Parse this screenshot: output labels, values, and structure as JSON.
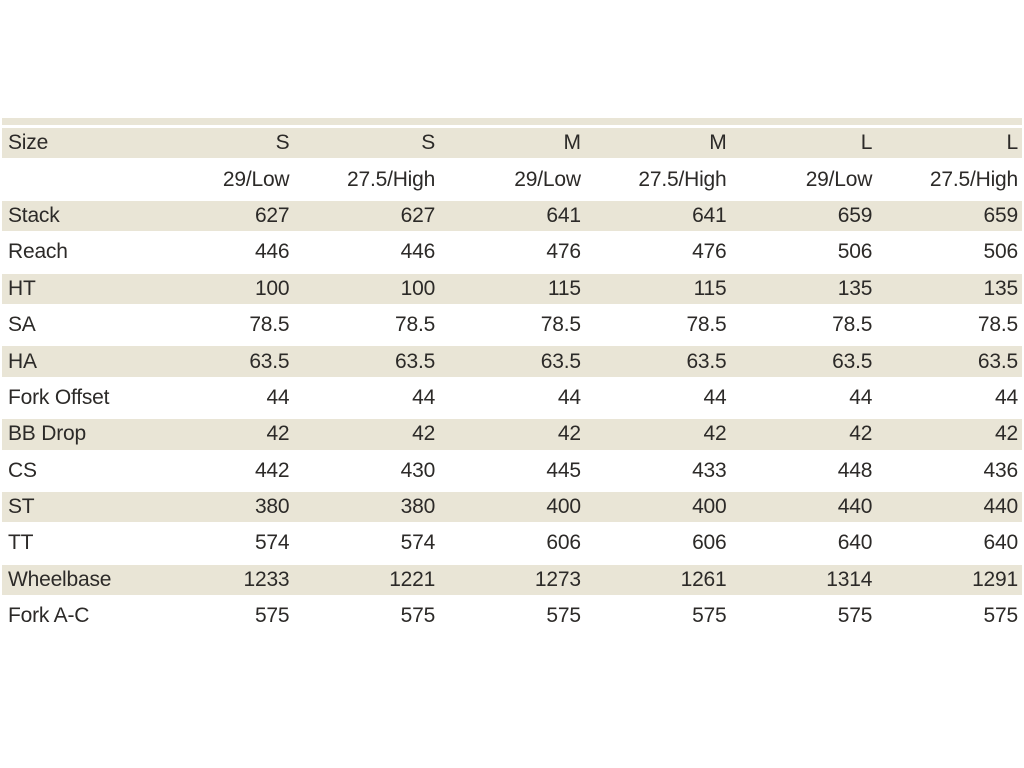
{
  "chart_data": {
    "type": "table",
    "description": "Bike frame geometry table (mm / degrees) by frame size and wheel configuration",
    "header": {
      "label": "Size",
      "sizes": [
        "S",
        "S",
        "M",
        "M",
        "L",
        "L"
      ]
    },
    "subheader": {
      "label": "",
      "wheel_configs": [
        "29/Low",
        "27.5/High",
        "29/Low",
        "27.5/High",
        "29/Low",
        "27.5/High"
      ]
    },
    "rows": [
      {
        "label": "Stack",
        "values": [
          "627",
          "627",
          "641",
          "641",
          "659",
          "659"
        ]
      },
      {
        "label": "Reach",
        "values": [
          "446",
          "446",
          "476",
          "476",
          "506",
          "506"
        ]
      },
      {
        "label": "HT",
        "values": [
          "100",
          "100",
          "115",
          "115",
          "135",
          "135"
        ]
      },
      {
        "label": "SA",
        "values": [
          "78.5",
          "78.5",
          "78.5",
          "78.5",
          "78.5",
          "78.5"
        ]
      },
      {
        "label": "HA",
        "values": [
          "63.5",
          "63.5",
          "63.5",
          "63.5",
          "63.5",
          "63.5"
        ]
      },
      {
        "label": "Fork Offset",
        "values": [
          "44",
          "44",
          "44",
          "44",
          "44",
          "44"
        ]
      },
      {
        "label": "BB Drop",
        "values": [
          "42",
          "42",
          "42",
          "42",
          "42",
          "42"
        ]
      },
      {
        "label": "CS",
        "values": [
          "442",
          "430",
          "445",
          "433",
          "448",
          "436"
        ]
      },
      {
        "label": "ST",
        "values": [
          "380",
          "380",
          "400",
          "400",
          "440",
          "440"
        ]
      },
      {
        "label": "TT",
        "values": [
          "574",
          "574",
          "606",
          "606",
          "640",
          "640"
        ]
      },
      {
        "label": "Wheelbase",
        "values": [
          "1233",
          "1221",
          "1273",
          "1261",
          "1314",
          "1291"
        ]
      },
      {
        "label": "Fork A-C",
        "values": [
          "575",
          "575",
          "575",
          "575",
          "575",
          "575"
        ]
      }
    ]
  },
  "colors": {
    "stripe": "#e9e5d6",
    "text": "#2c2a28",
    "background": "#ffffff"
  }
}
